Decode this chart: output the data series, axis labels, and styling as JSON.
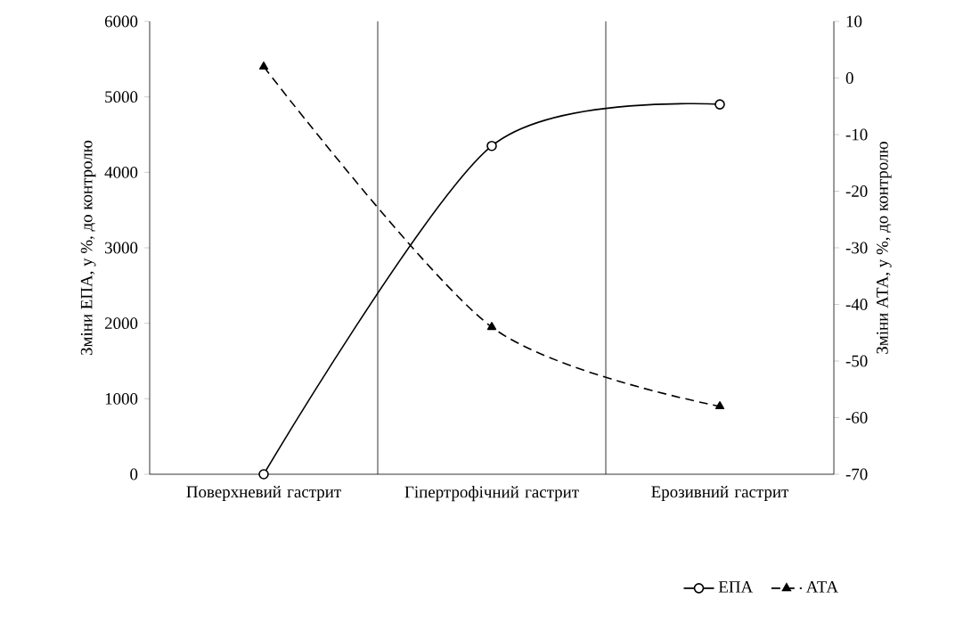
{
  "chart_data": {
    "type": "line",
    "categories": [
      "Поверхневий гастрит",
      "Гіпертрофічний гастрит",
      "Ерозивний гастрит"
    ],
    "ylabel": "Зміни ЕПА, у %, до контролю",
    "y2label": "Зміни АТА, у %, до контролю",
    "series": [
      {
        "name": "ЕПА",
        "color": "#000000",
        "values": [
          0,
          4350,
          4900
        ],
        "marker": "circle",
        "line_style": "solid"
      },
      {
        "name": "АТА",
        "color": "#000000",
        "values": [
          2,
          -44,
          -58
        ],
        "marker": "triangle",
        "line_style": "dashed",
        "axis": "y2"
      }
    ],
    "ylim": [
      0,
      6000
    ],
    "yticks": [
      0,
      1000,
      2000,
      3000,
      4000,
      5000,
      6000
    ],
    "y2lim": [
      -70,
      10
    ],
    "y2ticks": [
      -70,
      -60,
      -50,
      -40,
      -30,
      -20,
      -10,
      0,
      10
    ],
    "grid": "x",
    "legend": "bottom right"
  }
}
